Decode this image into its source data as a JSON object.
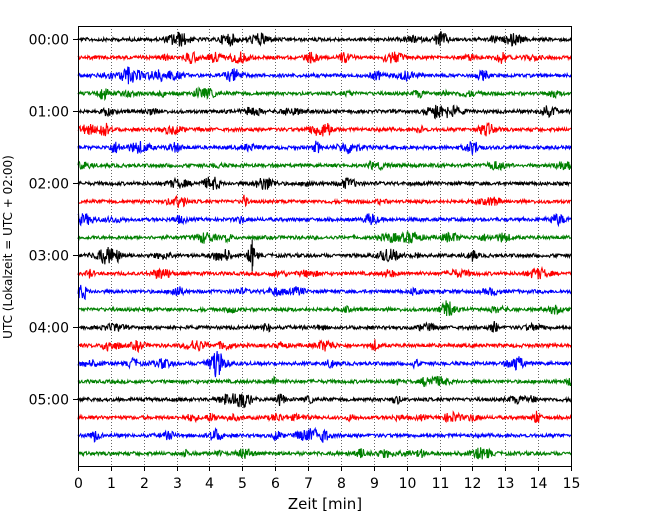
{
  "chart_data": {
    "type": "line",
    "title": "",
    "xlabel": "Zeit  [min]",
    "ylabel": "UTC (Lokalzeit = UTC + 02:00)",
    "xlim": [
      0,
      15
    ],
    "x_ticks": [
      0,
      1,
      2,
      3,
      4,
      5,
      6,
      7,
      8,
      9,
      10,
      11,
      12,
      13,
      14,
      15
    ],
    "x_tick_labels": [
      "0",
      "1",
      "2",
      "3",
      "4",
      "5",
      "6",
      "7",
      "8",
      "9",
      "10",
      "11",
      "12",
      "13",
      "14",
      "15"
    ],
    "y_tick_labels": [
      "00:00",
      "01:00",
      "02:00",
      "03:00",
      "04:00",
      "05:00"
    ],
    "grid": "vertical-dotted",
    "trace_minutes_per_row": 15,
    "trace_colors": [
      "#000000",
      "#ff0000",
      "#0000ff",
      "#008000"
    ],
    "rows": [
      {
        "start": "00:00"
      },
      {
        "start": "00:15"
      },
      {
        "start": "00:30"
      },
      {
        "start": "00:45"
      },
      {
        "start": "01:00"
      },
      {
        "start": "01:15"
      },
      {
        "start": "01:30"
      },
      {
        "start": "01:45"
      },
      {
        "start": "02:00"
      },
      {
        "start": "02:15"
      },
      {
        "start": "02:30"
      },
      {
        "start": "02:45"
      },
      {
        "start": "03:00",
        "events": [
          {
            "t": 4.5,
            "amp": 3.0
          },
          {
            "t": 5.3,
            "amp": 6.0
          }
        ]
      },
      {
        "start": "03:15"
      },
      {
        "start": "03:30"
      },
      {
        "start": "03:45"
      },
      {
        "start": "04:00"
      },
      {
        "start": "04:15"
      },
      {
        "start": "04:30"
      },
      {
        "start": "04:45"
      },
      {
        "start": "05:00"
      },
      {
        "start": "05:15",
        "events": [
          {
            "t": 13.95,
            "amp": 3.0
          }
        ]
      },
      {
        "start": "05:30"
      },
      {
        "start": "05:45"
      }
    ]
  }
}
